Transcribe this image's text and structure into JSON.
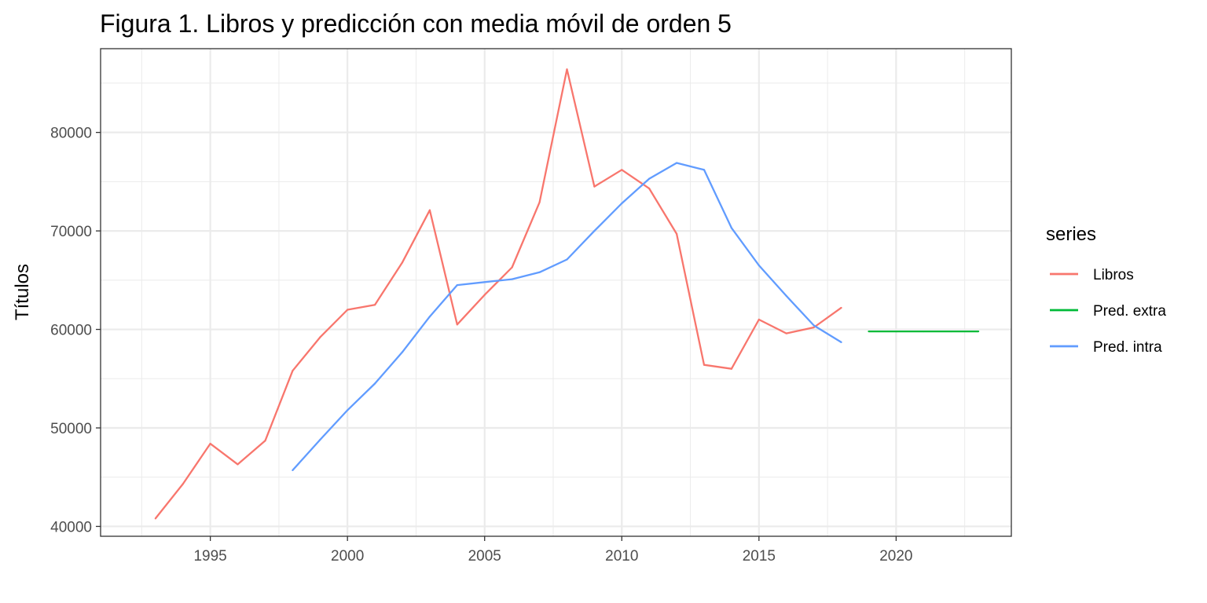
{
  "chart_data": {
    "type": "line",
    "title": "Figura 1. Libros y predicción con media móvil de orden 5",
    "xlabel": "",
    "ylabel": "Títulos",
    "xlim": [
      1991,
      2024.2
    ],
    "ylim": [
      39000,
      88500
    ],
    "x_ticks": [
      1995,
      2000,
      2005,
      2010,
      2015,
      2020
    ],
    "x_tick_labels": [
      "1995",
      "2000",
      "2005",
      "2010",
      "2015",
      "2020"
    ],
    "y_ticks": [
      40000,
      50000,
      60000,
      70000,
      80000
    ],
    "y_tick_labels": [
      "40000",
      "50000",
      "60000",
      "70000",
      "80000"
    ],
    "grid": true,
    "legend": {
      "title": "series",
      "position": "right"
    },
    "series": [
      {
        "name": "Libros",
        "color": "#F8766D",
        "x": [
          1993,
          1994,
          1995,
          1996,
          1997,
          1998,
          1999,
          2000,
          2001,
          2002,
          2003,
          2004,
          2005,
          2006,
          2007,
          2008,
          2009,
          2010,
          2011,
          2012,
          2013,
          2014,
          2015,
          2016,
          2017,
          2018
        ],
        "y": [
          40800,
          44300,
          48400,
          46300,
          48700,
          55800,
          59200,
          62000,
          62500,
          66800,
          72100,
          60500,
          63500,
          66300,
          72900,
          86400,
          74500,
          76200,
          74300,
          69700,
          56400,
          56000,
          61000,
          59600,
          60200,
          62200
        ]
      },
      {
        "name": "Pred. extra",
        "color": "#00BA38",
        "x": [
          2019,
          2020,
          2021,
          2022,
          2023
        ],
        "y": [
          59800,
          59800,
          59800,
          59800,
          59800
        ]
      },
      {
        "name": "Pred. intra",
        "color": "#619CFF",
        "x": [
          1998,
          1999,
          2000,
          2001,
          2002,
          2003,
          2004,
          2005,
          2006,
          2007,
          2008,
          2009,
          2010,
          2011,
          2012,
          2013,
          2014,
          2015,
          2016,
          2017,
          2018
        ],
        "y": [
          45700,
          48800,
          51800,
          54500,
          57700,
          61300,
          64500,
          64800,
          65100,
          65800,
          67100,
          70000,
          72800,
          75300,
          76900,
          76200,
          70300,
          66500,
          63400,
          60400,
          58700
        ]
      }
    ]
  }
}
